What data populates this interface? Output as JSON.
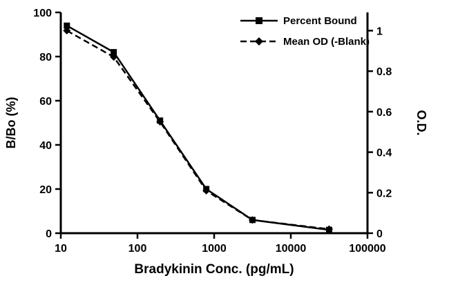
{
  "chart_data": {
    "type": "line",
    "title": "",
    "xlabel": "Bradykinin Conc. (pg/mL)",
    "ylabel_left": "B/Bo (%)",
    "ylabel_right": "O.D.",
    "x_scale": "log",
    "xlim": [
      10,
      100000
    ],
    "x_ticks": [
      10,
      100,
      1000,
      10000,
      100000
    ],
    "x_tick_labels": [
      "10",
      "100",
      "1000",
      "10000",
      "100000"
    ],
    "ylim_left": [
      0,
      100
    ],
    "y_ticks_left": [
      0,
      20,
      40,
      60,
      80,
      100
    ],
    "y_tick_labels_left": [
      "0",
      "20",
      "40",
      "60",
      "80",
      "100"
    ],
    "ylim_right": [
      0,
      1.09
    ],
    "y_ticks_right": [
      0,
      0.2,
      0.4,
      0.6,
      0.8,
      1
    ],
    "y_tick_labels_right": [
      "0",
      "0.2",
      "0.4",
      "0.6",
      "0.8",
      "1"
    ],
    "x": [
      12,
      49,
      197,
      790,
      3160,
      31600
    ],
    "series": [
      {
        "name": "Percent Bound",
        "axis": "left",
        "line_style": "solid",
        "marker": "square",
        "color": "#000000",
        "values": [
          94,
          82,
          51,
          20,
          6,
          1.5
        ]
      },
      {
        "name": "Mean OD (-Blank)",
        "axis": "right",
        "line_style": "dashed",
        "marker": "diamond",
        "color": "#000000",
        "values": [
          1.0,
          0.87,
          0.55,
          0.21,
          0.065,
          0.02
        ]
      }
    ],
    "legend_position": "top-right",
    "grid": false,
    "colors": {
      "line": "#000000",
      "text": "#000000",
      "background": "#ffffff"
    }
  }
}
